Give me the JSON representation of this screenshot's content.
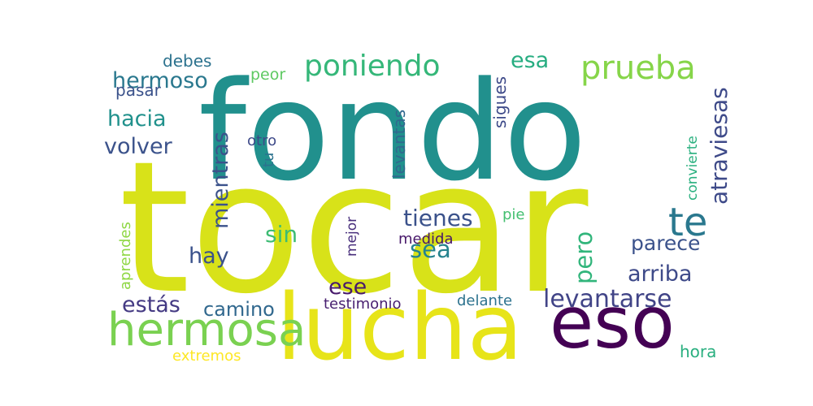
{
  "word_cloud": {
    "words": [
      {
        "text": "tocar",
        "color": "#d8e219"
      },
      {
        "text": "fondo",
        "color": "#21908d"
      },
      {
        "text": "lucha",
        "color": "#e7e419"
      },
      {
        "text": "eso",
        "color": "#440154"
      },
      {
        "text": "hermosa",
        "color": "#7ad151"
      },
      {
        "text": "te",
        "color": "#2a788e"
      },
      {
        "text": "prueba",
        "color": "#86d549"
      },
      {
        "text": "poniendo",
        "color": "#35b779"
      },
      {
        "text": "esa",
        "color": "#27ad81"
      },
      {
        "text": "atraviesas",
        "color": "#3e4a89"
      },
      {
        "text": "hermoso",
        "color": "#2a788e"
      },
      {
        "text": "hacia",
        "color": "#21918c"
      },
      {
        "text": "volver",
        "color": "#3b528b"
      },
      {
        "text": "mientras",
        "color": "#3b528b"
      },
      {
        "text": "levantarse",
        "color": "#414487"
      },
      {
        "text": "debes",
        "color": "#2c728e"
      },
      {
        "text": "pasar",
        "color": "#3b528b"
      },
      {
        "text": "peor",
        "color": "#5ec962"
      },
      {
        "text": "sigues",
        "color": "#3e4a89"
      },
      {
        "text": "levantas",
        "color": "#31688e"
      },
      {
        "text": "otro",
        "color": "#3e4a89"
      },
      {
        "text": "tu",
        "color": "#2c728e"
      },
      {
        "text": "convierte",
        "color": "#2ab07f"
      },
      {
        "text": "tienes",
        "color": "#3b528b"
      },
      {
        "text": "pie",
        "color": "#44bf70"
      },
      {
        "text": "sin",
        "color": "#3dbc74"
      },
      {
        "text": "sea",
        "color": "#25838e"
      },
      {
        "text": "mejor",
        "color": "#472d7b"
      },
      {
        "text": "medida",
        "color": "#48186a"
      },
      {
        "text": "pero",
        "color": "#31b57b"
      },
      {
        "text": "parece",
        "color": "#3b528b"
      },
      {
        "text": "arriba",
        "color": "#3e4a89"
      },
      {
        "text": "hay",
        "color": "#3b528b"
      },
      {
        "text": "aprendes",
        "color": "#8fd744"
      },
      {
        "text": "ese",
        "color": "#481a6c"
      },
      {
        "text": "estás",
        "color": "#443a83"
      },
      {
        "text": "camino",
        "color": "#31688e"
      },
      {
        "text": "testimonio",
        "color": "#481f70"
      },
      {
        "text": "delante",
        "color": "#2c728e"
      },
      {
        "text": "extremos",
        "color": "#fde725"
      },
      {
        "text": "hora",
        "color": "#29af7f"
      }
    ]
  }
}
